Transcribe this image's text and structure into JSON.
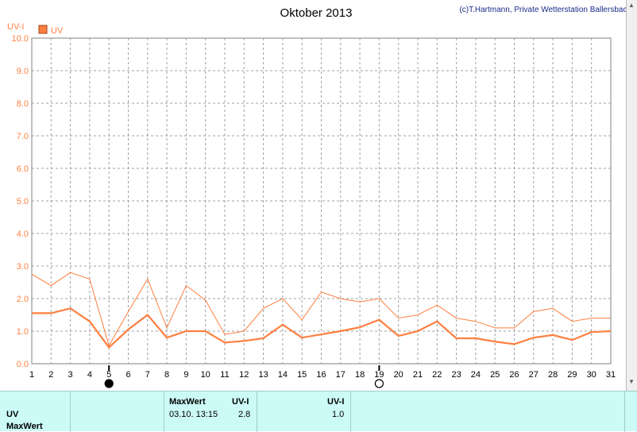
{
  "chart_data": {
    "type": "line",
    "title": "Oktober 2013",
    "credit": "(c)T.Hartmann, Private Wetterstation Ballersbach",
    "ylabel": "UV-I",
    "legend": {
      "label": "UV",
      "placement": "top-left",
      "color": "#ff7f3f"
    },
    "ylim": [
      0,
      10
    ],
    "yticks": [
      "0.0",
      "1.0",
      "2.0",
      "3.0",
      "4.0",
      "5.0",
      "6.0",
      "7.0",
      "8.0",
      "9.0",
      "10.0"
    ],
    "x": [
      1,
      2,
      3,
      4,
      5,
      6,
      7,
      8,
      9,
      10,
      11,
      12,
      13,
      14,
      15,
      16,
      17,
      18,
      19,
      20,
      21,
      22,
      23,
      24,
      25,
      26,
      27,
      28,
      29,
      30,
      31
    ],
    "series": [
      {
        "name": "UV",
        "values": [
          1.55,
          1.55,
          1.7,
          1.3,
          0.5,
          1.05,
          1.5,
          0.8,
          1.0,
          1.0,
          0.65,
          0.7,
          0.78,
          1.2,
          0.8,
          0.9,
          1.0,
          1.12,
          1.35,
          0.85,
          1.0,
          1.3,
          0.78,
          0.78,
          0.68,
          0.6,
          0.8,
          0.88,
          0.73,
          0.97,
          1.0
        ]
      },
      {
        "values": [
          2.75,
          2.4,
          2.8,
          2.6,
          0.55,
          1.6,
          2.6,
          1.1,
          2.4,
          1.95,
          0.9,
          1.0,
          1.7,
          2.0,
          1.35,
          2.2,
          2.0,
          1.9,
          2.0,
          1.4,
          1.5,
          1.8,
          1.4,
          1.3,
          1.1,
          1.1,
          1.6,
          1.7,
          1.3,
          1.4,
          1.4
        ]
      }
    ],
    "moon_phases": [
      {
        "day": 5,
        "phase": "new"
      },
      {
        "day": 19,
        "phase": "full"
      }
    ],
    "grid": true
  },
  "panel": {
    "row_label": "UV",
    "row_sub_label": "MaxWert",
    "col_maxwert_header": "MaxWert",
    "col_maxwert_unit": "UV-I",
    "max_datetime": "03.10.  13:15",
    "max_value": "2.8",
    "col_avg_unit": "UV-I",
    "avg_value": "1.0"
  },
  "colors": {
    "line": "#ff7f3f",
    "axis_text": "#ff7f3f",
    "panel_bg": "#ccfaf6"
  }
}
